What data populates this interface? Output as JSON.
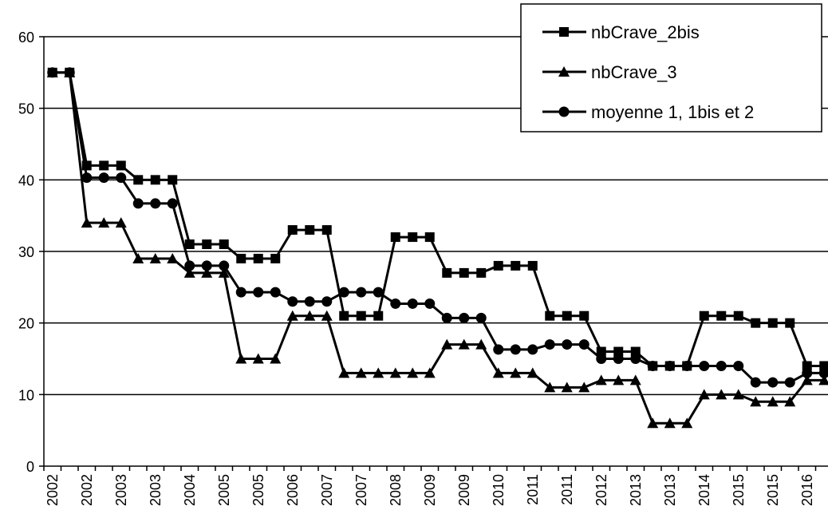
{
  "chart_data": {
    "type": "line",
    "categories": [
      "2002",
      null,
      "2002",
      null,
      "2003",
      null,
      "2003",
      null,
      "2004",
      null,
      "2005",
      null,
      "2005",
      null,
      "2006",
      null,
      "2007",
      null,
      "2007",
      null,
      "2008",
      null,
      "2009",
      null,
      "2009",
      null,
      "2010",
      null,
      "2011",
      null,
      "2011",
      null,
      "2012",
      null,
      "2013",
      null,
      "2013",
      null,
      "2014",
      null,
      "2015",
      null,
      "2015",
      null,
      "2016",
      null
    ],
    "series": [
      {
        "name": "nbCrave_2bis",
        "color": "#000000",
        "marker": "square",
        "values": [
          55,
          55,
          42,
          42,
          42,
          40,
          40,
          40,
          31,
          31,
          31,
          29,
          29,
          29,
          33,
          33,
          33,
          21,
          21,
          21,
          32,
          32,
          32,
          27,
          27,
          27,
          28,
          28,
          28,
          21,
          21,
          21,
          16,
          16,
          16,
          14,
          14,
          14,
          21,
          21,
          21,
          20,
          20,
          20,
          14,
          14
        ]
      },
      {
        "name": "nbCrave_3",
        "color": "#000000",
        "marker": "triangle",
        "values": [
          55,
          55,
          34,
          34,
          34,
          29,
          29,
          29,
          27,
          27,
          27,
          15,
          15,
          15,
          21,
          21,
          21,
          13,
          13,
          13,
          13,
          13,
          13,
          17,
          17,
          17,
          13,
          13,
          13,
          11,
          11,
          11,
          12,
          12,
          12,
          6,
          6,
          6,
          10,
          10,
          10,
          9,
          9,
          9,
          12,
          12
        ]
      },
      {
        "name": "moyenne 1, 1bis et 2",
        "color": "#000000",
        "marker": "circle",
        "values": [
          55,
          55,
          40.3,
          40.3,
          40.3,
          36.7,
          36.7,
          36.7,
          28,
          28,
          28,
          24.3,
          24.3,
          24.3,
          23,
          23,
          23,
          24.3,
          24.3,
          24.3,
          22.7,
          22.7,
          22.7,
          20.7,
          20.7,
          20.7,
          16.3,
          16.3,
          16.3,
          17,
          17,
          17,
          15,
          15,
          15,
          14,
          14,
          14,
          14,
          14,
          14,
          11.7,
          11.7,
          11.7,
          13,
          13
        ]
      }
    ],
    "ylim": [
      0,
      60
    ],
    "yticks": [
      0,
      10,
      20,
      30,
      40,
      50,
      60
    ],
    "grid": true,
    "legend": "upper right"
  }
}
